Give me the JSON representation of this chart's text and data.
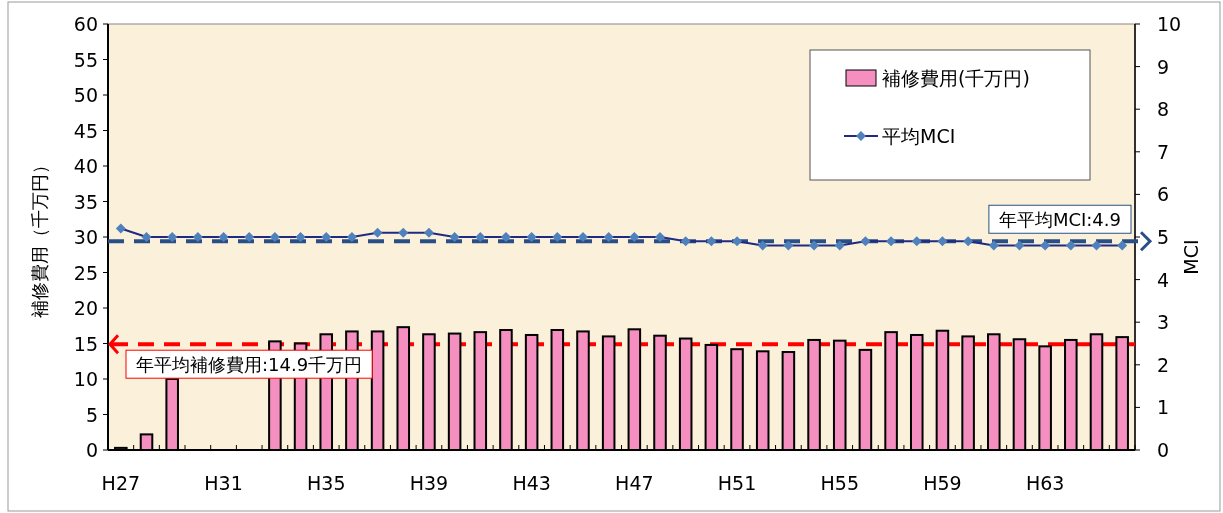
{
  "chart_data": {
    "type": "bar",
    "ylabel": "補修費用（千万円）",
    "y2label": "MCI",
    "categories": [
      "H27",
      null,
      null,
      null,
      "H31",
      null,
      null,
      null,
      "H35",
      null,
      null,
      null,
      "H39",
      null,
      null,
      null,
      "H43",
      null,
      null,
      null,
      "H47",
      null,
      null,
      null,
      "H51",
      null,
      null,
      null,
      "H55",
      null,
      null,
      null,
      "H59",
      null,
      null,
      null,
      "H63",
      null,
      null,
      null
    ],
    "series": [
      {
        "name": "補修費用(千万円)",
        "color": "#f48fc0",
        "values": [
          0.3,
          2.2,
          10,
          null,
          null,
          null,
          15.3,
          15,
          16.3,
          16.7,
          16.7,
          17.3,
          16.3,
          16.4,
          16.6,
          16.9,
          16.2,
          16.9,
          16.7,
          16.0,
          17.0,
          16.1,
          15.7,
          14.8,
          14.2,
          13.9,
          13.8,
          15.5,
          15.4,
          14.1,
          16.6,
          16.2,
          16.8,
          16.0,
          16.3,
          15.6,
          14.6,
          15.5,
          16.3,
          15.9
        ]
      },
      {
        "name": "平均MCI",
        "type": "line",
        "axis": "y2",
        "color": "#1f2a80",
        "values": [
          5.2,
          5.0,
          5.0,
          5.0,
          5.0,
          5.0,
          5.0,
          5.0,
          5.0,
          5.0,
          5.1,
          5.1,
          5.1,
          5.0,
          5.0,
          5.0,
          5.0,
          5.0,
          5.0,
          5.0,
          5.0,
          5.0,
          4.9,
          4.9,
          4.9,
          4.8,
          4.8,
          4.8,
          4.8,
          4.9,
          4.9,
          4.9,
          4.9,
          4.9,
          4.8,
          4.8,
          4.8,
          4.8,
          4.8,
          4.8
        ]
      }
    ],
    "ylim": [
      0,
      60
    ],
    "yticks": [
      0,
      5,
      10,
      15,
      20,
      25,
      30,
      35,
      40,
      45,
      50,
      55,
      60
    ],
    "y2lim": [
      0,
      10
    ],
    "y2ticks": [
      0,
      1,
      2,
      3,
      4,
      5,
      6,
      7,
      8,
      9,
      10
    ],
    "ref_lines": [
      {
        "axis": "y",
        "value": 14.9,
        "label": "年平均補修費用:14.9千万円",
        "color": "#ff0000",
        "line_style": "dashed"
      },
      {
        "axis": "y2",
        "value": 4.9,
        "label": "年平均MCI:4.9",
        "color": "#2a4f86",
        "line_style": "dashed"
      }
    ],
    "legend": "top right",
    "marker": "diamond",
    "grid": false
  }
}
